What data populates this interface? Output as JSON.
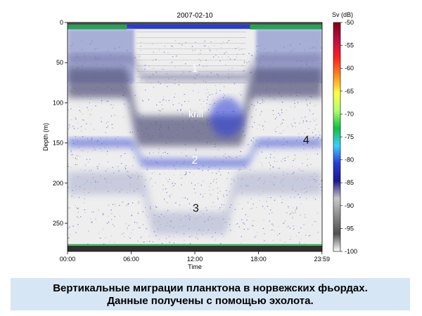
{
  "chart_data": {
    "type": "heatmap",
    "title": "2007-02-10",
    "xlabel": "Time",
    "ylabel": "Depth (m)",
    "x_ticks": [
      "00:00",
      "06:00",
      "12:00",
      "18:00",
      "23:59"
    ],
    "x_tick_hours": [
      0,
      6,
      12,
      18,
      23.983
    ],
    "xlim_hours": [
      0,
      24
    ],
    "y_ticks": [
      0,
      50,
      100,
      150,
      200,
      250
    ],
    "ylim": [
      0,
      285
    ],
    "y_inverted": true,
    "grid": false,
    "legend_placement": "right",
    "colorbar": {
      "label": "Sv (dB)",
      "ticks": [
        -50,
        -55,
        -60,
        -65,
        -70,
        -75,
        -80,
        -85,
        -90,
        -95,
        -100
      ],
      "range": [
        -100,
        -50
      ],
      "colors": [
        "#ffffff",
        "#505050",
        "#8a8a8a",
        "#c8c8c8",
        "#1a1a8a",
        "#2a3ad8",
        "#3ad0ff",
        "#10c040",
        "#b0ff70",
        "#ffff40",
        "#ff8a20",
        "#ff2020",
        "#c01040",
        "#800018"
      ]
    },
    "annotations": [
      {
        "text": "1",
        "hour": 12.0,
        "depth": 58
      },
      {
        "text": "krill",
        "hour": 12.1,
        "depth": 115
      },
      {
        "text": "2",
        "hour": 12.0,
        "depth": 172
      },
      {
        "text": "3",
        "hour": 12.1,
        "depth": 232
      },
      {
        "text": "4",
        "hour": 22.5,
        "depth": 147
      }
    ],
    "scattering_layers": [
      {
        "name": "1",
        "night_depth": 45,
        "day_depth": 68,
        "descent_hour": 6,
        "ascent_hour": 18
      },
      {
        "name": "krill",
        "night_depth": 75,
        "day_depth": 135,
        "descent_hour": 5.5,
        "ascent_hour": 17.5
      },
      {
        "name": "2",
        "night_depth": 150,
        "day_depth": 175,
        "descent_hour": 6,
        "ascent_hour": 18
      },
      {
        "name": "3",
        "night_depth": 200,
        "day_depth": 250,
        "descent_hour": 7,
        "ascent_hour": 16
      }
    ]
  },
  "caption": {
    "line1": "Вертикальные миграции планктона в норвежских фьордах.",
    "line2": "Данные получены с помощью эхолота."
  }
}
